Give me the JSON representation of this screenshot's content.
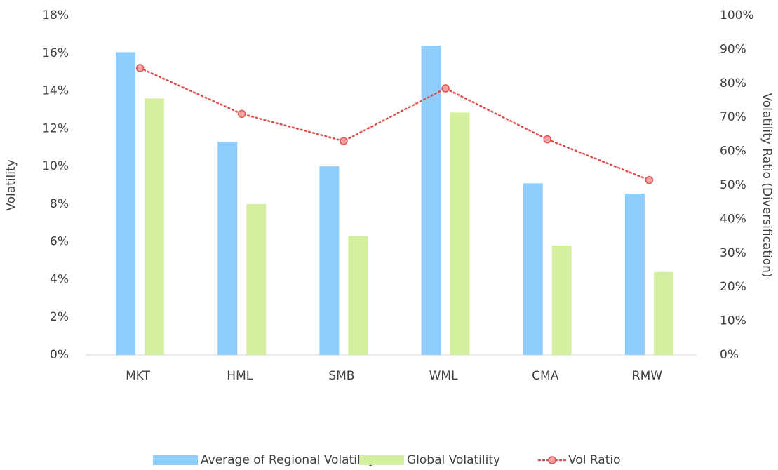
{
  "chart_data": {
    "type": "bar_line",
    "y_label": "Volatility",
    "y2_label": "Volatility Ratio (Diversification)",
    "categories": [
      "MKT",
      "HML",
      "SMB",
      "WML",
      "CMA",
      "RMW"
    ],
    "series": [
      {
        "name": "Average of Regional Volatility",
        "type": "bar",
        "color": "#8fcdfc",
        "values": [
          16.05,
          11.3,
          10.0,
          16.4,
          9.1,
          8.55
        ]
      },
      {
        "name": "Global Volatility",
        "type": "bar",
        "color": "#d4efa0",
        "values": [
          13.6,
          8.0,
          6.3,
          12.85,
          5.8,
          4.4
        ]
      },
      {
        "name": "Vol Ratio",
        "type": "line",
        "axis": "y2",
        "color": "#e0504f",
        "values": [
          84.5,
          71,
          63,
          78.5,
          63.5,
          51.5
        ]
      }
    ],
    "ylim": [
      0,
      18
    ],
    "yticks": [
      {
        "value": 0,
        "label": "0%"
      },
      {
        "value": 2,
        "label": "2%"
      },
      {
        "value": 4,
        "label": "4%"
      },
      {
        "value": 6,
        "label": "6%"
      },
      {
        "value": 8,
        "label": "8%"
      },
      {
        "value": 10,
        "label": "10%"
      },
      {
        "value": 12,
        "label": "12%"
      },
      {
        "value": 14,
        "label": "14%"
      },
      {
        "value": 16,
        "label": "16%"
      },
      {
        "value": 18,
        "label": "18%"
      }
    ],
    "y2lim": [
      0,
      100
    ],
    "y2ticks": [
      {
        "value": 0,
        "label": "0%"
      },
      {
        "value": 10,
        "label": "10%"
      },
      {
        "value": 20,
        "label": "20%"
      },
      {
        "value": 30,
        "label": "30%"
      },
      {
        "value": 40,
        "label": "40%"
      },
      {
        "value": 50,
        "label": "50%"
      },
      {
        "value": 60,
        "label": "60%"
      },
      {
        "value": 70,
        "label": "70%"
      },
      {
        "value": 80,
        "label": "80%"
      },
      {
        "value": 90,
        "label": "90%"
      },
      {
        "value": 100,
        "label": "100%"
      }
    ],
    "grid": false,
    "legend": "bottom"
  }
}
